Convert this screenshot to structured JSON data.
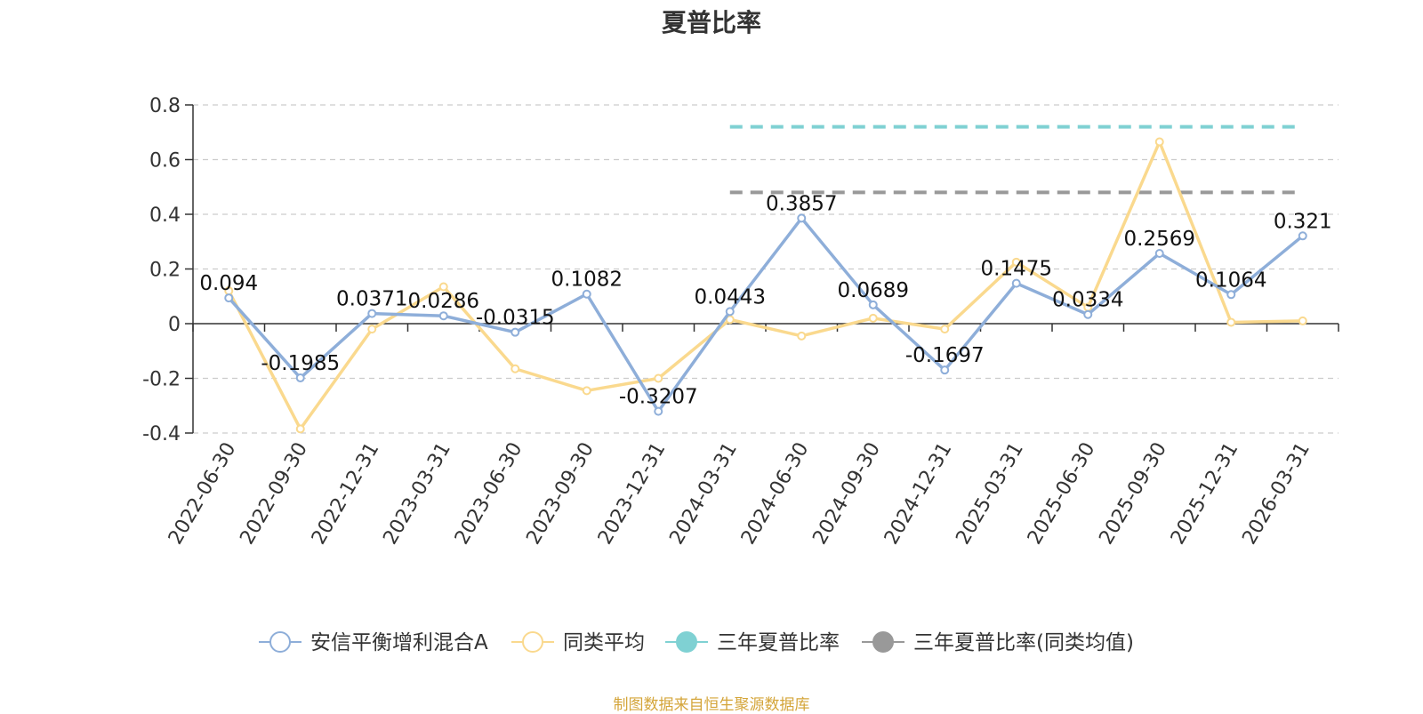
{
  "chart_data": {
    "type": "line",
    "title": "夏普比率",
    "categories": [
      "2022-06-30",
      "2022-09-30",
      "2022-12-31",
      "2023-03-31",
      "2023-06-30",
      "2023-09-30",
      "2023-12-31",
      "2024-03-31",
      "2024-06-30",
      "2024-09-30",
      "2024-12-31",
      "2025-03-31",
      "2025-06-30",
      "2025-09-30",
      "2025-12-31",
      "2026-03-31"
    ],
    "yticks": [
      "0.8",
      "0.6",
      "0.4",
      "0.2",
      "0",
      "-0.2",
      "-0.4"
    ],
    "ylim": [
      -0.4,
      0.8
    ],
    "grid": true,
    "legend_position": "bottom",
    "series": [
      {
        "name": "安信平衡增利混合A",
        "color": "#8eaed9",
        "values": [
          0.094,
          -0.1985,
          0.0371,
          0.0286,
          -0.0315,
          0.1082,
          -0.3207,
          0.0443,
          0.3857,
          0.0689,
          -0.1697,
          0.1475,
          0.0334,
          0.2569,
          0.1064,
          0.321
        ],
        "labels": [
          "0.094",
          "-0.1985",
          "0.0371",
          "0.0286",
          "-0.0315",
          "0.1082",
          "-0.3207",
          "0.0443",
          "0.3857",
          "0.0689",
          "-0.1697",
          "0.1475",
          "0.0334",
          "0.2569",
          "0.1064",
          "0.321"
        ]
      },
      {
        "name": "同类平均",
        "color": "#fad98e",
        "values": [
          0.12,
          -0.385,
          -0.02,
          0.135,
          -0.165,
          -0.245,
          -0.2,
          0.015,
          -0.045,
          0.02,
          -0.02,
          0.225,
          0.06,
          0.665,
          0.005,
          0.01
        ]
      }
    ],
    "reference_lines": [
      {
        "name": "三年夏普比率",
        "color": "#7fd1d3",
        "value": 0.72,
        "from": "2024-03-31",
        "to": "2026-03-31"
      },
      {
        "name": "三年夏普比率(同类均值)",
        "color": "#999999",
        "value": 0.48,
        "from": "2024-03-31",
        "to": "2026-03-31"
      }
    ]
  },
  "source_note": "制图数据来自恒生聚源数据库"
}
